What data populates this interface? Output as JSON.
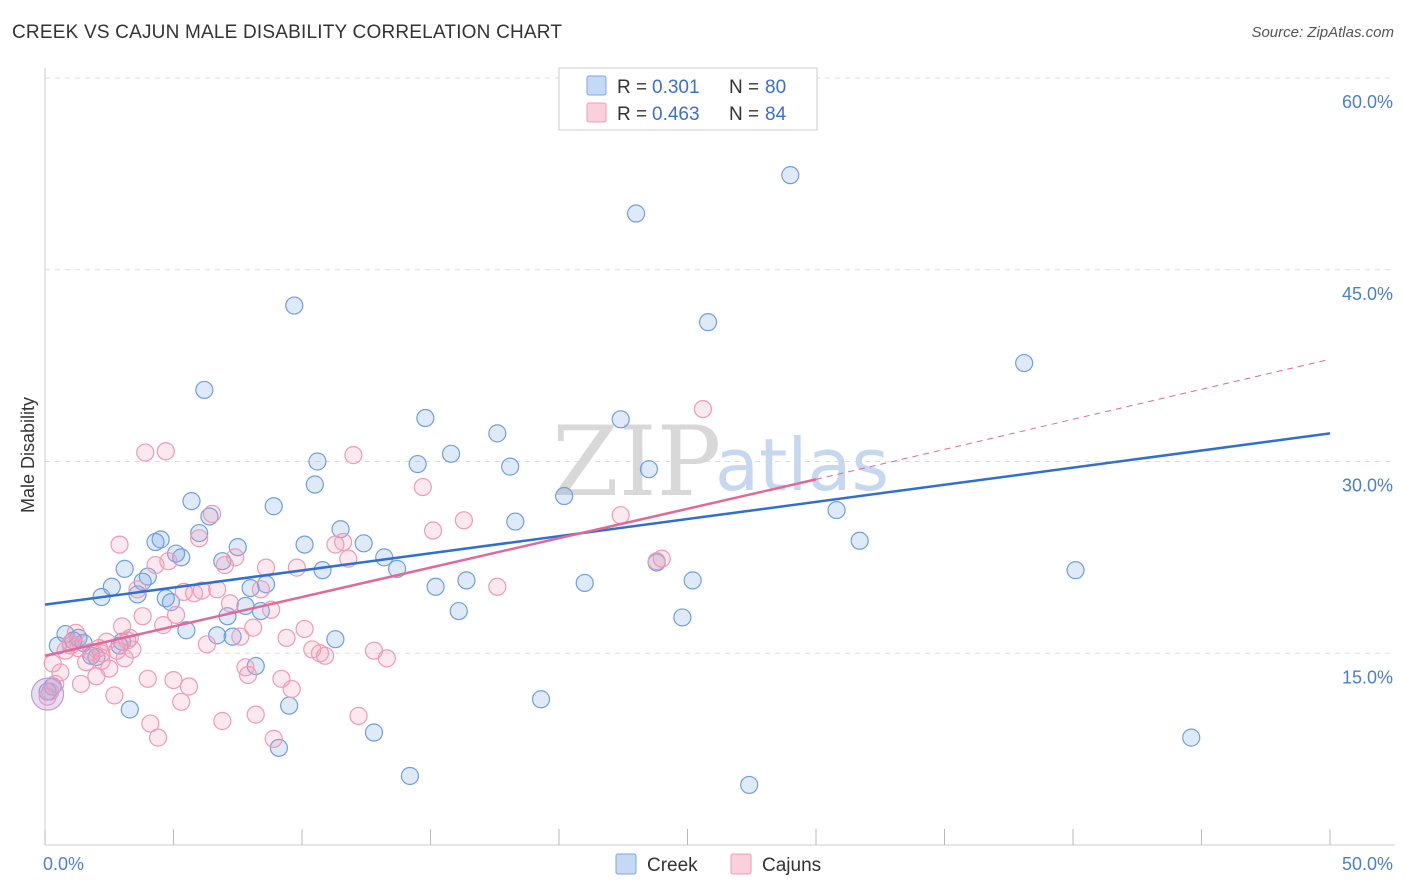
{
  "header": {
    "title": "CREEK VS CAJUN MALE DISABILITY CORRELATION CHART",
    "source": "Source: ZipAtlas.com"
  },
  "colors": {
    "creek": "#6f9fe0",
    "creek_line": "#2f6fce",
    "cajun": "#f09ab4",
    "cajun_line": "#e0689a",
    "grid": "#dddddd",
    "axis_label": "#4a7fd1"
  },
  "watermark": {
    "zip": "ZIP",
    "atlas": "atlas"
  },
  "legend": {
    "items": [
      {
        "r_label": "R =",
        "r_value": "0.301",
        "n_label": "N =",
        "n_value": "80"
      },
      {
        "r_label": "R =",
        "r_value": "0.463",
        "n_label": "N =",
        "n_value": "84"
      }
    ]
  },
  "bottom_legend": {
    "creek": "Creek",
    "cajun": "Cajuns"
  },
  "chart_data": {
    "type": "scatter",
    "title": "CREEK VS CAJUN MALE DISABILITY CORRELATION CHART",
    "xlabel": "",
    "ylabel": "Male Disability",
    "xlim": [
      0,
      50
    ],
    "ylim": [
      0,
      60
    ],
    "x_tick_labels": [
      "0.0%",
      "50.0%"
    ],
    "y_ticks": [
      15,
      30,
      45,
      60
    ],
    "y_tick_labels": [
      "15.0%",
      "30.0%",
      "45.0%",
      "60.0%"
    ],
    "grid": true,
    "legend_position": "top-center",
    "series": [
      {
        "name": "Creek",
        "r": 0.301,
        "n": 80,
        "trend": {
          "x": [
            0,
            50
          ],
          "y": [
            18.8,
            32.2
          ]
        },
        "points": [
          [
            0.3,
            12.4
          ],
          [
            0.5,
            15.6
          ],
          [
            0.8,
            16.5
          ],
          [
            1.1,
            16.0
          ],
          [
            1.5,
            15.8
          ],
          [
            1.8,
            14.8
          ],
          [
            2.0,
            14.7
          ],
          [
            2.2,
            19.4
          ],
          [
            2.6,
            20.2
          ],
          [
            3.0,
            15.9
          ],
          [
            3.1,
            21.6
          ],
          [
            3.3,
            10.6
          ],
          [
            3.6,
            19.6
          ],
          [
            3.8,
            20.6
          ],
          [
            4.0,
            21.0
          ],
          [
            4.3,
            23.7
          ],
          [
            4.5,
            23.9
          ],
          [
            4.7,
            19.3
          ],
          [
            4.9,
            19.0
          ],
          [
            5.1,
            22.8
          ],
          [
            5.3,
            22.5
          ],
          [
            5.5,
            16.8
          ],
          [
            5.7,
            26.9
          ],
          [
            6.0,
            24.4
          ],
          [
            6.2,
            35.6
          ],
          [
            6.4,
            25.7
          ],
          [
            6.7,
            16.4
          ],
          [
            6.9,
            22.2
          ],
          [
            7.1,
            17.9
          ],
          [
            7.3,
            16.3
          ],
          [
            7.5,
            23.3
          ],
          [
            7.8,
            18.7
          ],
          [
            8.0,
            20.1
          ],
          [
            8.2,
            14.0
          ],
          [
            8.4,
            18.3
          ],
          [
            8.6,
            20.4
          ],
          [
            8.9,
            26.5
          ],
          [
            9.1,
            7.6
          ],
          [
            9.5,
            10.9
          ],
          [
            9.7,
            42.2
          ],
          [
            10.1,
            23.5
          ],
          [
            10.5,
            28.2
          ],
          [
            10.6,
            30.0
          ],
          [
            10.8,
            21.5
          ],
          [
            11.3,
            16.1
          ],
          [
            11.5,
            24.7
          ],
          [
            12.4,
            23.6
          ],
          [
            12.8,
            8.8
          ],
          [
            13.2,
            22.5
          ],
          [
            13.7,
            21.6
          ],
          [
            14.2,
            5.4
          ],
          [
            14.5,
            29.8
          ],
          [
            14.8,
            33.4
          ],
          [
            15.2,
            20.2
          ],
          [
            15.8,
            30.6
          ],
          [
            16.1,
            18.3
          ],
          [
            16.4,
            20.7
          ],
          [
            17.6,
            32.2
          ],
          [
            18.1,
            29.6
          ],
          [
            18.3,
            25.3
          ],
          [
            19.3,
            11.4
          ],
          [
            20.2,
            27.3
          ],
          [
            21.0,
            20.5
          ],
          [
            22.4,
            33.3
          ],
          [
            23.0,
            49.4
          ],
          [
            23.5,
            29.4
          ],
          [
            23.8,
            22.1
          ],
          [
            24.8,
            17.8
          ],
          [
            25.2,
            20.7
          ],
          [
            25.8,
            40.9
          ],
          [
            27.4,
            4.7
          ],
          [
            29.0,
            52.4
          ],
          [
            30.8,
            26.2
          ],
          [
            31.7,
            23.8
          ],
          [
            38.1,
            37.7
          ],
          [
            40.1,
            21.5
          ],
          [
            44.6,
            8.4
          ],
          [
            0.1,
            12.0
          ],
          [
            1.3,
            16.2
          ],
          [
            2.9,
            15.6
          ]
        ]
      },
      {
        "name": "Cajuns",
        "r": 0.463,
        "n": 84,
        "trend": {
          "x": [
            0,
            30
          ],
          "y": [
            14.8,
            28.6
          ]
        },
        "trend_dashed": {
          "x": [
            30,
            50
          ],
          "y": [
            28.6,
            38.0
          ]
        },
        "points": [
          [
            0.2,
            12.0
          ],
          [
            0.4,
            12.6
          ],
          [
            0.6,
            13.5
          ],
          [
            0.8,
            15.2
          ],
          [
            1.0,
            15.6
          ],
          [
            1.2,
            16.6
          ],
          [
            1.3,
            15.4
          ],
          [
            1.4,
            12.6
          ],
          [
            1.6,
            14.3
          ],
          [
            1.8,
            15.1
          ],
          [
            2.0,
            13.2
          ],
          [
            2.1,
            15.4
          ],
          [
            2.2,
            14.4
          ],
          [
            2.4,
            15.9
          ],
          [
            2.5,
            13.8
          ],
          [
            2.7,
            11.7
          ],
          [
            2.8,
            15.2
          ],
          [
            2.9,
            23.5
          ],
          [
            3.0,
            17.1
          ],
          [
            3.2,
            16.0
          ],
          [
            3.3,
            16.2
          ],
          [
            3.4,
            15.3
          ],
          [
            3.6,
            20.0
          ],
          [
            3.8,
            17.9
          ],
          [
            3.9,
            30.7
          ],
          [
            4.0,
            13.0
          ],
          [
            4.1,
            9.5
          ],
          [
            4.3,
            21.9
          ],
          [
            4.4,
            8.4
          ],
          [
            4.6,
            17.2
          ],
          [
            4.7,
            30.8
          ],
          [
            4.8,
            22.2
          ],
          [
            5.0,
            12.9
          ],
          [
            5.1,
            18.0
          ],
          [
            5.3,
            11.2
          ],
          [
            5.4,
            19.8
          ],
          [
            5.6,
            12.4
          ],
          [
            5.8,
            19.7
          ],
          [
            6.0,
            24.0
          ],
          [
            6.1,
            19.9
          ],
          [
            6.3,
            15.7
          ],
          [
            6.5,
            25.9
          ],
          [
            6.7,
            20.0
          ],
          [
            6.9,
            9.7
          ],
          [
            7.0,
            21.9
          ],
          [
            7.2,
            18.9
          ],
          [
            7.4,
            22.5
          ],
          [
            7.6,
            16.3
          ],
          [
            7.8,
            13.9
          ],
          [
            7.9,
            13.3
          ],
          [
            8.1,
            17.0
          ],
          [
            8.2,
            10.2
          ],
          [
            8.4,
            20.0
          ],
          [
            8.6,
            21.7
          ],
          [
            8.8,
            18.4
          ],
          [
            8.9,
            8.3
          ],
          [
            9.2,
            13.0
          ],
          [
            9.4,
            16.2
          ],
          [
            9.6,
            12.2
          ],
          [
            9.8,
            21.7
          ],
          [
            10.1,
            16.9
          ],
          [
            10.4,
            15.3
          ],
          [
            10.7,
            15.0
          ],
          [
            10.9,
            14.8
          ],
          [
            11.3,
            23.5
          ],
          [
            11.6,
            23.7
          ],
          [
            11.8,
            22.4
          ],
          [
            12.0,
            30.5
          ],
          [
            12.2,
            10.1
          ],
          [
            12.8,
            15.2
          ],
          [
            13.3,
            14.6
          ],
          [
            14.7,
            28.0
          ],
          [
            15.1,
            24.6
          ],
          [
            16.3,
            25.4
          ],
          [
            17.6,
            20.2
          ],
          [
            22.4,
            25.8
          ],
          [
            23.8,
            22.2
          ],
          [
            24.0,
            22.4
          ],
          [
            25.6,
            34.1
          ],
          [
            0.1,
            11.6
          ],
          [
            0.3,
            14.2
          ],
          [
            1.0,
            15.8
          ],
          [
            2.2,
            15.0
          ],
          [
            3.1,
            14.6
          ]
        ]
      }
    ]
  }
}
